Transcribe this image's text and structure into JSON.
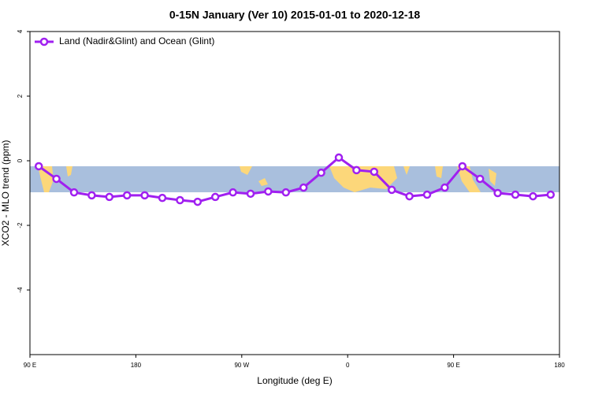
{
  "chart_data": {
    "type": "line",
    "title": "0-15N January (Ver 10)   2015-01-01 to 2020-12-18",
    "x_label": "Longitude (deg E)",
    "y_label": "XCO2 - MLO trend (ppm)",
    "x": [
      97.5,
      112.5,
      127.5,
      142.5,
      157.5,
      172.5,
      187.5,
      202.5,
      217.5,
      232.5,
      247.5,
      262.5,
      277.5,
      292.5,
      307.5,
      322.5,
      337.5,
      352.5,
      367.5,
      382.5,
      397.5,
      412.5,
      427.5,
      442.5,
      457.5,
      472.5,
      487.5,
      502.5,
      517.5,
      532.5
    ],
    "series": [
      {
        "name": "Land (Nadir&Glint) and Ocean (Glint)",
        "color": "#a020f0",
        "values": [
          -0.17,
          -0.56,
          -0.98,
          -1.07,
          -1.12,
          -1.07,
          -1.07,
          -1.15,
          -1.22,
          -1.27,
          -1.12,
          -0.98,
          -1.02,
          -0.95,
          -0.98,
          -0.83,
          -0.37,
          0.1,
          -0.29,
          -0.34,
          -0.9,
          -1.1,
          -1.05,
          -0.83,
          -0.17,
          -0.56,
          -1.0,
          -1.05,
          -1.1,
          -1.05
        ]
      }
    ],
    "xlim": [
      90,
      540
    ],
    "xticks": [
      {
        "value": 90,
        "label": "90 E"
      },
      {
        "value": 180,
        "label": "180"
      },
      {
        "value": 270,
        "label": "90 W"
      },
      {
        "value": 360,
        "label": "0"
      },
      {
        "value": 450,
        "label": "90 E"
      },
      {
        "value": 540,
        "label": "180"
      }
    ],
    "ylim": [
      -6,
      4
    ],
    "yticks": [
      -4,
      -2,
      0,
      2,
      4
    ],
    "legend": "top-left"
  }
}
